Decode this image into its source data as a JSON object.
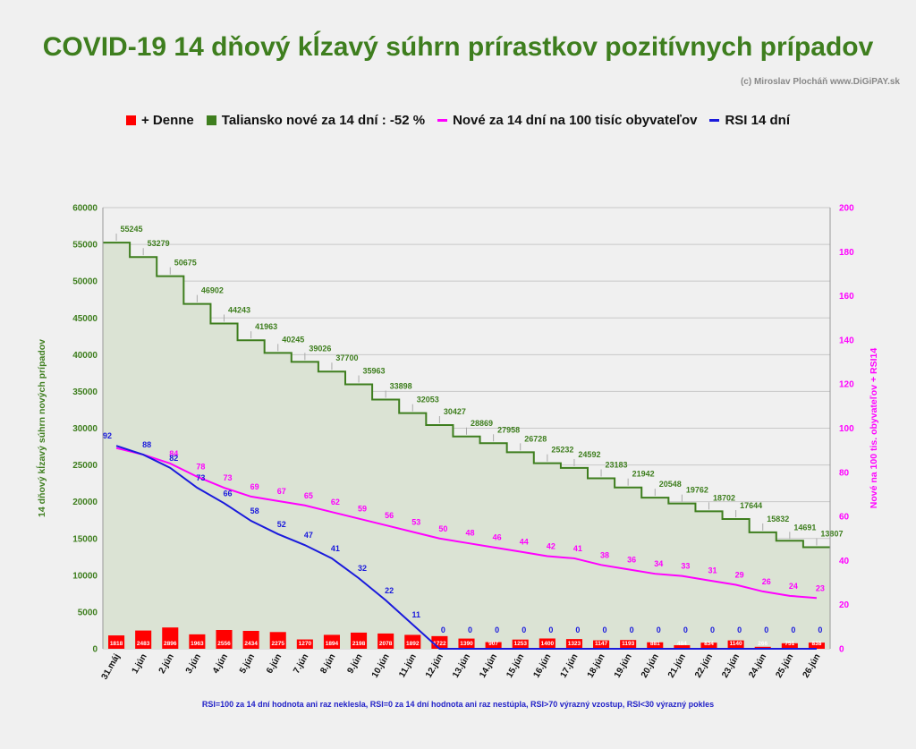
{
  "title": "COVID-19 14 dňový kĺzavý súhrn prírastkov pozitívnych prípadov",
  "credit": "(c) Miroslav Plocháň  www.DiGiPAY.sk",
  "footnote": "RSI=100 za 14 dní hodnota ani raz neklesla, RSI=0 za 14 dní hodnota ani raz nestúpla, RSI>70 výrazný  vzostup, RSI<30 výrazný pokles",
  "legend": [
    {
      "label": "+ Denne",
      "color": "#ff0000",
      "kind": "box"
    },
    {
      "label": "Taliansko nové za 14 dní : -52 %",
      "color": "#3e7e1e",
      "kind": "box"
    },
    {
      "label": "Nové za 14 dní na 100 tisíc obyvateľov",
      "color": "#ff00ff",
      "kind": "line"
    },
    {
      "label": "RSI 14 dní",
      "color": "#1a1adc",
      "kind": "line"
    }
  ],
  "chart_data": {
    "type": "line",
    "categories": [
      "31.máj",
      "1.jún",
      "2.jún",
      "3.jún",
      "4.jún",
      "5.jún",
      "6.jún",
      "7.jún",
      "8.jún",
      "9.jún",
      "10.jún",
      "11.jún",
      "12.jún",
      "13.jún",
      "14.jún",
      "15.jún",
      "16.jún",
      "17.jún",
      "18.jún",
      "19.jún",
      "20.jún",
      "21.jún",
      "22.jún",
      "23.jún",
      "24.jún",
      "25.jún",
      "26.jún"
    ],
    "y_left_label": "14 dňový kĺzavý  súhrn nových prípadov",
    "y_right_label": "Nové na 100 tis. obyvateľov + RSI14",
    "y_left_range": [
      0,
      60000
    ],
    "y_left_ticks": [
      "0",
      "5000",
      "10000",
      "15000",
      "20000",
      "25000",
      "30000",
      "35000",
      "40000",
      "45000",
      "50000",
      "55000",
      "60000"
    ],
    "y_right_range": [
      0,
      200
    ],
    "y_right_ticks": [
      "0",
      "20",
      "40",
      "60",
      "80",
      "100",
      "120",
      "140",
      "160",
      "180",
      "200"
    ],
    "grid": true,
    "legend_position": "top",
    "series": [
      {
        "name": "+ Denne",
        "type": "bar",
        "axis": "left",
        "color": "#ff0000",
        "values": [
          1818,
          2483,
          2896,
          1963,
          2556,
          2434,
          2275,
          1270,
          1894,
          2198,
          2078,
          1892,
          1722,
          1390,
          907,
          1253,
          1400,
          1323,
          1147,
          1193,
          881,
          484,
          834,
          1140,
          266,
          751,
          838
        ],
        "labels": [
          "1818",
          "2483",
          "2896",
          "1963",
          "2556",
          "2434",
          "2275",
          "1270",
          "1894",
          "2198",
          "2078",
          "1892",
          "1722",
          "1390",
          "907",
          "1253",
          "1400",
          "1323",
          "1147",
          "1193",
          "881",
          "484",
          "834",
          "1140",
          "266",
          "751",
          "838"
        ]
      },
      {
        "name": "Taliansko nové za 14 dní : -52 %",
        "type": "step-area",
        "axis": "left",
        "color": "#3e7e1e",
        "values": [
          55245,
          53279,
          50675,
          46902,
          44243,
          41963,
          40245,
          39026,
          37700,
          35963,
          33898,
          32053,
          30427,
          28869,
          27958,
          26728,
          25232,
          24592,
          23183,
          21942,
          20548,
          19762,
          18702,
          17644,
          15832,
          14691,
          13807
        ],
        "labels": [
          "55245",
          "53279",
          "50675",
          "46902",
          "44243",
          "41963",
          "40245",
          "39026",
          "37700",
          "35963",
          "33898",
          "32053",
          "30427",
          "28869",
          "27958",
          "26728",
          "25232",
          "24592",
          "23183",
          "21942",
          "20548",
          "19762",
          "18702",
          "17644",
          "15832",
          "14691",
          "13807"
        ]
      },
      {
        "name": "Nové za 14 dní na 100 tisíc obyvateľov",
        "type": "line",
        "axis": "right",
        "color": "#ff00ff",
        "values": [
          91,
          88,
          84,
          78,
          73,
          69,
          67,
          65,
          62,
          59,
          56,
          53,
          50,
          48,
          46,
          44,
          42,
          41,
          38,
          36,
          34,
          33,
          31,
          29,
          26,
          24,
          23
        ],
        "labels": [
          "",
          "",
          "84",
          "78",
          "73",
          "69",
          "67",
          "65",
          "62",
          "59",
          "56",
          "53",
          "50",
          "48",
          "46",
          "44",
          "42",
          "41",
          "38",
          "36",
          "34",
          "33",
          "31",
          "29",
          "26",
          "24",
          "23"
        ]
      },
      {
        "name": "RSI 14 dní",
        "type": "line",
        "axis": "right",
        "color": "#1a1adc",
        "values": [
          92,
          88,
          82,
          73,
          66,
          58,
          52,
          47,
          41,
          32,
          22,
          11,
          0,
          0,
          0,
          0,
          0,
          0,
          0,
          0,
          0,
          0,
          0,
          0,
          0,
          0,
          0
        ],
        "labels": [
          "92",
          "88",
          "82",
          "73",
          "66",
          "58",
          "52",
          "47",
          "41",
          "32",
          "22",
          "11",
          "0",
          "0",
          "0",
          "0",
          "0",
          "0",
          "0",
          "0",
          "0",
          "0",
          "0",
          "0",
          "0",
          "0",
          "0"
        ]
      }
    ]
  }
}
